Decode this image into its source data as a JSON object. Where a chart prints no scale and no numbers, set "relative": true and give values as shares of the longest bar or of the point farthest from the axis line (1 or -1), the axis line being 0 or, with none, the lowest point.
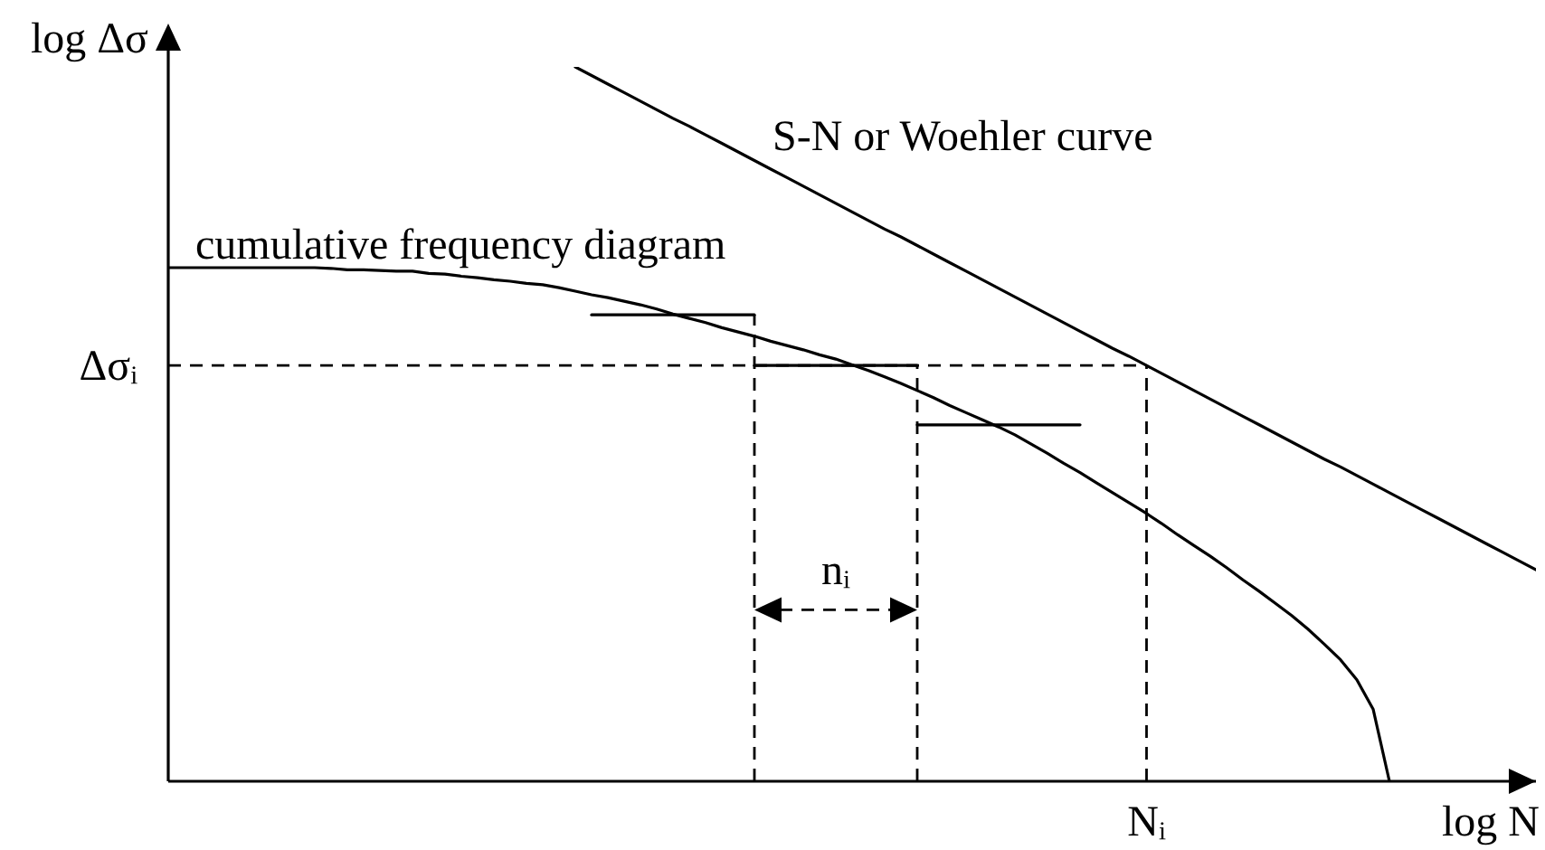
{
  "chart_data": {
    "type": "line",
    "relative": true,
    "xlabel": "log N",
    "ylabel": "log Δσ",
    "categories": [
      null,
      null,
      null,
      null,
      null,
      null,
      null,
      null,
      null,
      null,
      null,
      null,
      null,
      null,
      null,
      null,
      null,
      null,
      null,
      null,
      null,
      null,
      null,
      null,
      null,
      null,
      null,
      null,
      null,
      null,
      null,
      null,
      null,
      null,
      null,
      null,
      null,
      null,
      null,
      null,
      null,
      null,
      null,
      null,
      null,
      null,
      null,
      null,
      null,
      null,
      null,
      null,
      null,
      null,
      null,
      null,
      null,
      null,
      null,
      null,
      null,
      null,
      null,
      null,
      null,
      null,
      null,
      null,
      null,
      null,
      null,
      null,
      null,
      null,
      null,
      null,
      null,
      null,
      null,
      null,
      null,
      null,
      null,
      null,
      null
    ],
    "series": [
      {
        "name": "S-N or Woehler curve",
        "color": "#000000",
        "values": [
          null,
          null,
          null,
          null,
          null,
          null,
          null,
          null,
          null,
          null,
          null,
          null,
          null,
          null,
          null,
          null,
          null,
          null,
          null,
          null,
          null,
          null,
          null,
          null,
          null,
          1.0,
          0.988,
          0.976,
          0.964,
          0.952,
          0.94,
          0.928,
          0.917,
          0.905,
          0.893,
          0.881,
          0.869,
          0.857,
          0.845,
          0.833,
          0.821,
          0.809,
          0.797,
          0.785,
          0.773,
          0.762,
          0.75,
          0.738,
          0.726,
          0.714,
          0.702,
          0.69,
          0.678,
          0.666,
          0.654,
          0.642,
          0.63,
          0.618,
          0.606,
          0.595,
          0.583,
          0.571,
          0.559,
          0.547,
          0.535,
          0.523,
          0.511,
          0.499,
          0.487,
          0.475,
          0.463,
          0.451,
          0.44,
          0.428,
          0.416,
          0.404,
          0.392,
          0.38,
          0.368,
          0.356,
          0.344,
          0.332,
          0.32,
          0.308,
          0.296
        ]
      },
      {
        "name": "cumulative frequency diagram",
        "color": "#000000",
        "values": [
          0.719,
          0.719,
          0.719,
          0.719,
          0.719,
          0.719,
          0.719,
          0.719,
          0.719,
          0.719,
          0.718,
          0.716,
          0.716,
          0.715,
          0.714,
          0.714,
          0.711,
          0.71,
          0.707,
          0.705,
          0.702,
          0.7,
          0.697,
          0.695,
          0.691,
          0.686,
          0.681,
          0.677,
          0.672,
          0.667,
          0.661,
          0.654,
          0.648,
          0.642,
          0.635,
          0.629,
          0.623,
          0.616,
          0.61,
          0.604,
          0.597,
          0.591,
          0.583,
          0.575,
          0.566,
          0.557,
          0.547,
          0.537,
          0.526,
          0.516,
          0.506,
          0.496,
          0.485,
          0.472,
          0.459,
          0.445,
          0.432,
          0.418,
          0.404,
          0.39,
          0.376,
          0.361,
          0.345,
          0.33,
          0.315,
          0.299,
          0.282,
          0.266,
          0.249,
          0.232,
          0.213,
          0.192,
          0.17,
          0.142,
          0.101,
          0,
          null,
          null,
          null,
          null,
          null,
          null,
          null,
          null,
          null
        ]
      },
      {
        "color": "#000000",
        "values": [
          null,
          null,
          null,
          null,
          null,
          null,
          null,
          null,
          null,
          null,
          null,
          null,
          null,
          null,
          null,
          null,
          null,
          null,
          null,
          null,
          null,
          null,
          null,
          null,
          null,
          null,
          0.653,
          0.653,
          0.653,
          0.653,
          0.653,
          0.653,
          0.653,
          0.653,
          0.653,
          0.653,
          0.653,
          null,
          null,
          null,
          null,
          null,
          null,
          null,
          null,
          null,
          null,
          null,
          null,
          null,
          null,
          null,
          null,
          null,
          null,
          null,
          null,
          null,
          null,
          null,
          null,
          null,
          null,
          null,
          null,
          null,
          null,
          null,
          null,
          null,
          null,
          null,
          null,
          null,
          null,
          null,
          null,
          null,
          null,
          null,
          null,
          null,
          null,
          null,
          null
        ]
      },
      {
        "color": "#000000",
        "values": [
          null,
          null,
          null,
          null,
          null,
          null,
          null,
          null,
          null,
          null,
          null,
          null,
          null,
          null,
          null,
          null,
          null,
          null,
          null,
          null,
          null,
          null,
          null,
          null,
          null,
          null,
          null,
          null,
          null,
          null,
          null,
          null,
          null,
          null,
          null,
          null,
          0.582,
          0.582,
          0.582,
          0.582,
          0.582,
          0.582,
          0.582,
          0.582,
          0.582,
          0.582,
          0.582,
          null,
          null,
          null,
          null,
          null,
          null,
          null,
          null,
          null,
          null,
          null,
          null,
          null,
          null,
          null,
          null,
          null,
          null,
          null,
          null,
          null,
          null,
          null,
          null,
          null,
          null,
          null,
          null,
          null,
          null,
          null,
          null,
          null,
          null,
          null,
          null,
          null,
          null
        ]
      },
      {
        "color": "#000000",
        "values": [
          null,
          null,
          null,
          null,
          null,
          null,
          null,
          null,
          null,
          null,
          null,
          null,
          null,
          null,
          null,
          null,
          null,
          null,
          null,
          null,
          null,
          null,
          null,
          null,
          null,
          null,
          null,
          null,
          null,
          null,
          null,
          null,
          null,
          null,
          null,
          null,
          null,
          null,
          null,
          null,
          null,
          null,
          null,
          null,
          null,
          null,
          0.499,
          0.499,
          0.499,
          0.499,
          0.499,
          0.499,
          0.499,
          0.499,
          0.499,
          0.499,
          0.499,
          null,
          null,
          null,
          null,
          null,
          null,
          null,
          null,
          null,
          null,
          null,
          null,
          null,
          null,
          null,
          null,
          null,
          null,
          null,
          null,
          null,
          null,
          null,
          null,
          null,
          null,
          null,
          null
        ]
      }
    ],
    "ref_lines": [
      {
        "axis": "y",
        "value": 0.582,
        "label": "Δσᵢ",
        "line_style": "dashed"
      }
    ],
    "annotations": [
      "nᵢ",
      "Nᵢ"
    ]
  }
}
